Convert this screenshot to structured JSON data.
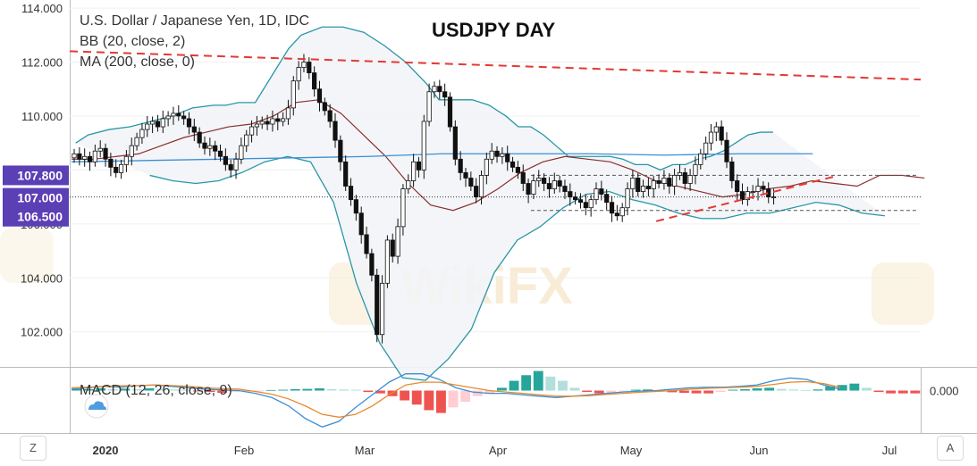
{
  "chart_data": [
    {
      "type": "candlestick",
      "title": "USDJPY DAY",
      "legend": [
        "U.S. Dollar / Japanese Yen, 1D, IDC",
        "BB (20, close, 2)",
        "MA (200, close, 0)"
      ],
      "x_tick_labels": [
        "2020",
        "Feb",
        "Mar",
        "Apr",
        "May",
        "Jun",
        "Jul"
      ],
      "y_tick_labels": [
        "114.000",
        "112.000",
        "110.000",
        "108.000",
        "106.000",
        "104.000",
        "102.000"
      ],
      "y_tick_values": [
        114,
        112,
        110,
        108,
        106,
        104,
        102
      ],
      "ylim": [
        100.7,
        114.3
      ],
      "price_tags": [
        {
          "label": "107.800",
          "value": 107.8
        },
        {
          "label": "107.000",
          "value": 107.0
        },
        {
          "label": "106.500",
          "value": 106.5
        }
      ],
      "ohlc_close": [
        108.6,
        108.4,
        108.5,
        108.3,
        108.7,
        108.8,
        108.4,
        108.1,
        107.9,
        108.2,
        108.5,
        108.9,
        109.2,
        109.5,
        109.7,
        109.8,
        109.6,
        109.9,
        110.0,
        110.1,
        110.0,
        109.9,
        109.6,
        109.4,
        109.0,
        108.8,
        108.9,
        108.7,
        108.5,
        108.2,
        108.0,
        108.4,
        108.9,
        109.3,
        109.6,
        109.7,
        109.8,
        109.7,
        109.9,
        109.8,
        109.9,
        110.3,
        111.3,
        111.8,
        112.0,
        111.6,
        111.0,
        110.5,
        110.2,
        109.8,
        109.1,
        108.3,
        107.4,
        106.9,
        106.4,
        105.6,
        104.9,
        104.1,
        101.9,
        103.8,
        105.4,
        104.8,
        105.9,
        107.3,
        107.6,
        108.3,
        108.0,
        109.8,
        110.9,
        111.1,
        110.9,
        110.7,
        109.6,
        108.4,
        107.9,
        107.7,
        107.4,
        107.0,
        107.8,
        108.4,
        108.7,
        108.5,
        108.6,
        108.3,
        108.1,
        107.9,
        107.5,
        107.1,
        107.6,
        107.7,
        107.5,
        107.3,
        107.6,
        107.4,
        107.2,
        107.0,
        106.9,
        106.8,
        106.6,
        106.9,
        107.3,
        107.1,
        106.8,
        106.4,
        106.3,
        106.6,
        107.3,
        107.7,
        107.2,
        107.4,
        107.3,
        107.6,
        107.5,
        107.7,
        107.4,
        107.8,
        107.9,
        107.5,
        107.8,
        108.2,
        108.6,
        109.0,
        109.4,
        109.6,
        109.1,
        108.3,
        107.6,
        107.2,
        106.9,
        107.2,
        107.2,
        107.4,
        107.3,
        107.0,
        107.0
      ],
      "bb_upper": [
        109.0,
        109.3,
        109.5,
        109.6,
        109.8,
        110.0,
        110.3,
        110.4,
        110.4,
        110.5,
        110.5,
        111.5,
        112.5,
        113.0,
        113.3,
        113.3,
        113.1,
        112.6,
        112.0,
        111.2,
        110.6,
        110.6,
        110.6,
        110.4,
        110.0,
        109.6,
        109.6,
        109.3,
        108.9,
        108.5,
        108.5,
        108.5,
        108.5,
        108.4,
        108.2,
        108.2,
        108.0,
        108.2,
        108.2,
        108.4,
        108.5,
        108.7,
        109.0,
        109.3,
        109.4,
        109.4
      ],
      "bb_upper_x": [
        1,
        4,
        9,
        14,
        19,
        24,
        29,
        34,
        37,
        40,
        44,
        48,
        52,
        55,
        60,
        65,
        70,
        75,
        80,
        85,
        88,
        92,
        96,
        100,
        104,
        107,
        110,
        113,
        116,
        119,
        122,
        125,
        129,
        132,
        135,
        138,
        141,
        144,
        147,
        150,
        153,
        156,
        159,
        162,
        165,
        168
      ],
      "bb_middle": [
        108.4,
        108.4,
        108.5,
        108.6,
        108.9,
        109.2,
        109.4,
        109.6,
        109.7,
        110.0,
        110.5,
        110.6,
        110.1,
        109.3,
        108.5,
        107.5,
        106.7,
        106.5,
        106.8,
        107.3,
        107.9,
        108.3,
        108.5,
        108.4,
        108.3,
        108.0,
        107.6,
        107.4,
        107.2,
        107.0,
        107.1,
        107.3,
        107.4,
        107.6,
        107.5,
        107.4,
        107.8,
        107.8,
        107.7
      ],
      "bb_lower": [
        107.8,
        107.6,
        107.5,
        107.6,
        107.9,
        108.3,
        108.5,
        108.3,
        106.8,
        103.8,
        101.6,
        100.3,
        100.2,
        101.0,
        102.1,
        104.2,
        105.4,
        105.9,
        106.6,
        107.1,
        107.2,
        106.9,
        106.7,
        106.4,
        106.2,
        106.2,
        106.4,
        106.4,
        106.6,
        106.8,
        106.7,
        106.4,
        106.3
      ],
      "ma200": [
        108.3,
        108.35,
        108.4,
        108.45,
        108.5,
        108.6,
        108.6,
        108.6,
        108.55,
        108.6,
        108.6
      ],
      "resistance_line": {
        "start": 112.4,
        "end": 111.35,
        "style": "red dashed"
      },
      "support_line": {
        "start": 106.1,
        "end": 107.75,
        "style": "red dashed"
      },
      "dashed_levels": [
        107.8,
        106.5
      ]
    },
    {
      "type": "histogram",
      "legend": "MACD (12, 26, close, 9)",
      "y_tick_labels": [
        "0.000"
      ],
      "y_tick_values": [
        0
      ],
      "histogram": [
        0.05,
        0.05,
        0.08,
        0.05,
        0.07,
        0.05,
        0.08,
        0.06,
        0.04,
        0.03,
        -0.03,
        -0.05,
        -0.08,
        -0.05,
        -0.04,
        -0.03,
        0.02,
        0.03,
        0.05,
        0.06,
        0.08,
        0.05,
        0.04,
        0.03,
        -0.05,
        -0.1,
        -0.2,
        -0.35,
        -0.5,
        -0.7,
        -0.8,
        -0.6,
        -0.4,
        -0.2,
        -0.1,
        0.1,
        0.35,
        0.55,
        0.7,
        0.5,
        0.35,
        0.1,
        -0.05,
        -0.1,
        -0.08,
        -0.03,
        0.03,
        0.04,
        -0.03,
        -0.06,
        -0.08,
        -0.1,
        -0.1,
        -0.05,
        0.03,
        0.05,
        0.08,
        0.1,
        0.06,
        0.04,
        0.02,
        0.04,
        0.15,
        0.2,
        0.25,
        0.1,
        -0.05,
        -0.1,
        -0.1,
        -0.1
      ],
      "macd_line": [
        0.05,
        0.1,
        0.15,
        0.12,
        0.18,
        0.2,
        0.15,
        0.1,
        0.05,
        0.02,
        0.0,
        -0.1,
        -0.25,
        -0.55,
        -1.0,
        -1.3,
        -1.1,
        -0.6,
        -0.15,
        0.3,
        0.6,
        0.6,
        0.4,
        0.1,
        -0.05,
        -0.1,
        -0.1,
        -0.15,
        -0.2,
        -0.25,
        -0.2,
        -0.15,
        -0.1,
        -0.05,
        -0.02,
        0.0,
        0.05,
        0.1,
        0.12,
        0.12,
        0.15,
        0.2,
        0.35,
        0.45,
        0.4,
        0.2,
        0.05
      ],
      "signal_line": [
        0.1,
        0.12,
        0.15,
        0.17,
        0.18,
        0.2,
        0.18,
        0.15,
        0.1,
        0.07,
        0.05,
        -0.03,
        -0.13,
        -0.3,
        -0.55,
        -0.85,
        -0.95,
        -0.85,
        -0.55,
        -0.15,
        0.2,
        0.3,
        0.3,
        0.2,
        0.1,
        0.0,
        -0.05,
        -0.1,
        -0.15,
        -0.2,
        -0.2,
        -0.18,
        -0.14,
        -0.1,
        -0.06,
        -0.03,
        0.0,
        0.05,
        0.08,
        0.1,
        0.12,
        0.15,
        0.22,
        0.3,
        0.32,
        0.25,
        0.12
      ],
      "ylim": [
        -1.45,
        0.75
      ]
    }
  ],
  "watermark": "WikiFX",
  "toolbar": {
    "zoom_button": "Z",
    "auto_button": "A"
  },
  "colors": {
    "up_candle": "#ffffff",
    "down_candle": "#111111",
    "bb_band": "#2a96a6",
    "bb_fill": "#f2f4f7",
    "bb_middle": "#8b2f2f",
    "ma200": "#3a8fd6",
    "trendline": "#e53935",
    "price_tag": "#5b3fb5",
    "macd_line": "#3a8fd6",
    "signal_line": "#e8892b",
    "hist_up_strong": "#26a69a",
    "hist_up_weak": "#b2dfdb",
    "hist_down_strong": "#ef5350",
    "hist_down_weak": "#ffcdd2"
  }
}
